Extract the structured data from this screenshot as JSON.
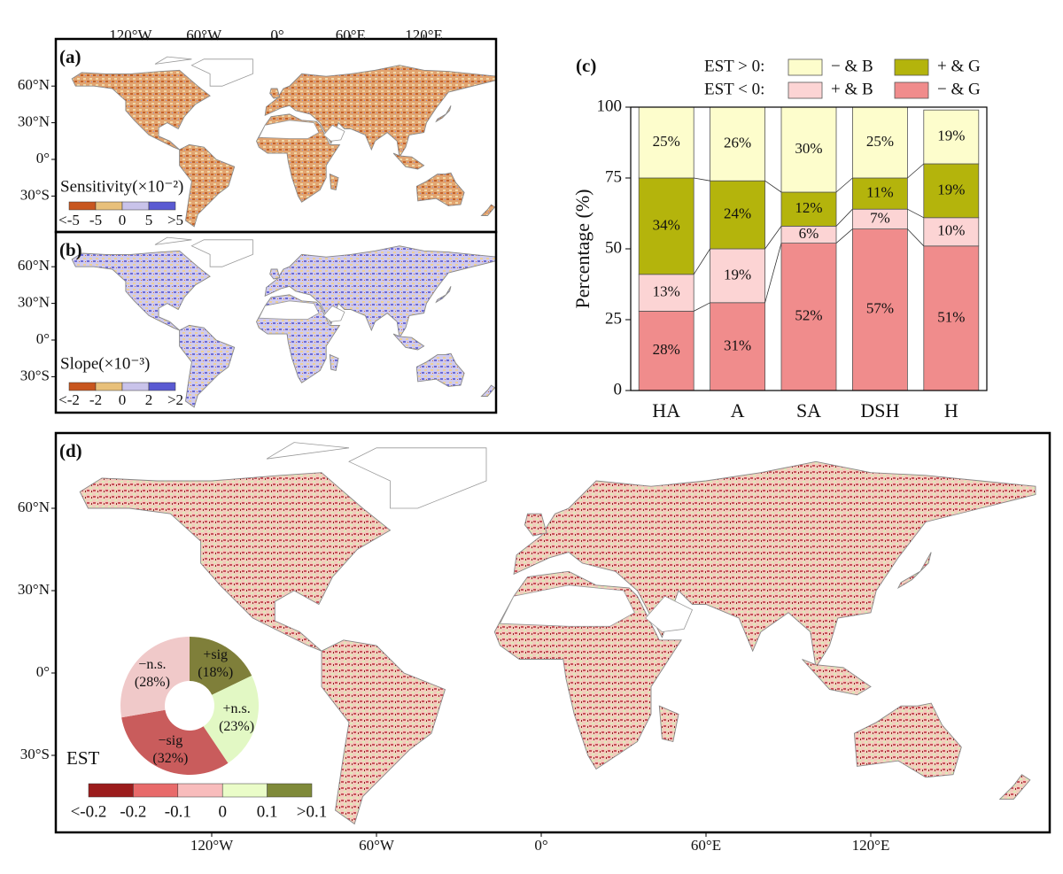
{
  "maps": [
    {
      "label": "(a)",
      "lon_ticks": [
        {
          "value": -120,
          "label": "120°W"
        },
        {
          "value": -60,
          "label": "60°W"
        },
        {
          "value": 0,
          "label": "0°"
        },
        {
          "value": 60,
          "label": "60°E"
        },
        {
          "value": 120,
          "label": "120°E"
        }
      ],
      "lat_ticks": [
        {
          "value": 60,
          "label": "60°N"
        },
        {
          "value": 30,
          "label": "30°N"
        },
        {
          "value": 0,
          "label": "0°"
        },
        {
          "value": -30,
          "label": "30°S"
        }
      ],
      "colorbar": {
        "title": "Sensitivity(×10⁻²)",
        "colors": [
          "#c8561e",
          "#e8c07a",
          "#c9c3ea",
          "#5a5ad2"
        ],
        "labels": [
          "<-5",
          "-5",
          "0",
          "5",
          ">5"
        ]
      }
    },
    {
      "label": "(b)",
      "lat_ticks": [
        {
          "value": 60,
          "label": "60°N"
        },
        {
          "value": 30,
          "label": "30°N"
        },
        {
          "value": 0,
          "label": "0°"
        },
        {
          "value": -30,
          "label": "30°S"
        }
      ],
      "colorbar": {
        "title": "Slope(×10⁻³)",
        "colors": [
          "#c8561e",
          "#e8c07a",
          "#c9c3ea",
          "#5a5ad2"
        ],
        "labels": [
          "<-2",
          "-2",
          "0",
          "2",
          ">2"
        ]
      }
    },
    {
      "label": "(d)",
      "lon_ticks": [
        {
          "value": -120,
          "label": "120°W"
        },
        {
          "value": -60,
          "label": "60°W"
        },
        {
          "value": 0,
          "label": "0°"
        },
        {
          "value": 60,
          "label": "60°E"
        },
        {
          "value": 120,
          "label": "120°E"
        }
      ],
      "lat_ticks": [
        {
          "value": 60,
          "label": "60°N"
        },
        {
          "value": 30,
          "label": "30°N"
        },
        {
          "value": 0,
          "label": "0°"
        },
        {
          "value": -30,
          "label": "30°S"
        }
      ],
      "colorbar": {
        "title": "EST",
        "colors": [
          "#9b1c1c",
          "#e86a6a",
          "#f8bcbc",
          "#eafcc8",
          "#7f8a3a"
        ],
        "labels": [
          "<-0.2",
          "-0.2",
          "-0.1",
          "0",
          "0.1",
          ">0.1"
        ]
      }
    }
  ],
  "chart_data": [
    {
      "type": "bar",
      "stacked": true,
      "label": "(c)",
      "ylabel": "Percentage (%)",
      "categories": [
        "HA",
        "A",
        "SA",
        "DSH",
        "H"
      ],
      "ylim": [
        0,
        100
      ],
      "yticks": [
        0,
        25,
        50,
        75,
        100
      ],
      "series": [
        {
          "name": "− & G",
          "group": "EST < 0:",
          "color": "#f08c8c",
          "values": [
            28,
            31,
            52,
            57,
            51
          ],
          "value_labels": [
            "28%",
            "31%",
            "52%",
            "57%",
            "51%"
          ]
        },
        {
          "name": "+ & B",
          "group": "EST < 0:",
          "color": "#fcd4d4",
          "values": [
            13,
            19,
            6,
            7,
            10
          ],
          "value_labels": [
            "13%",
            "19%",
            "6%",
            "7%",
            "10%"
          ]
        },
        {
          "name": "+ & G",
          "group": "EST > 0:",
          "color": "#b4b40c",
          "values": [
            34,
            24,
            12,
            11,
            19
          ],
          "value_labels": [
            "34%",
            "24%",
            "12%",
            "11%",
            "19%"
          ]
        },
        {
          "name": "− & B",
          "group": "EST > 0:",
          "color": "#fdfdcc",
          "values": [
            25,
            26,
            30,
            25,
            19
          ],
          "value_labels": [
            "25%",
            "26%",
            "30%",
            "25%",
            "19%"
          ]
        }
      ]
    },
    {
      "type": "pie",
      "donut": true,
      "categories": [
        "+sig",
        "+n.s.",
        "−sig",
        "−n.s."
      ],
      "values": [
        18,
        23,
        32,
        28
      ],
      "value_labels": [
        "(18%)",
        "(23%)",
        "(32%)",
        "(28%)"
      ],
      "colors": [
        "#7f7f3a",
        "#e2f8c4",
        "#c95c5c",
        "#f0c9c9"
      ]
    }
  ]
}
